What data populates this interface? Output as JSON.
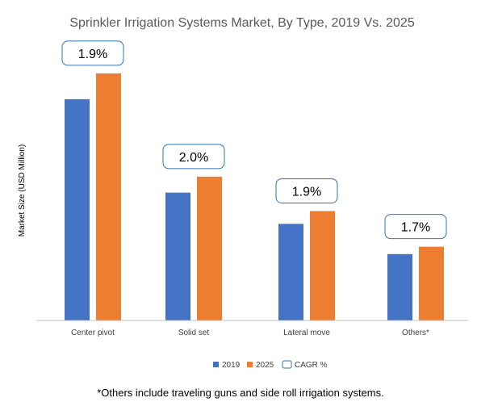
{
  "chart_data": {
    "type": "bar",
    "title": "Sprinkler Irrigation Systems Market, By Type, 2019 Vs. 2025",
    "ylabel": "Market Size (USD Million)",
    "xlabel": "",
    "categories": [
      "Center pivot",
      "Solid set",
      "Lateral move",
      "Others*"
    ],
    "series": [
      {
        "name": "2019",
        "color": "#4472C4",
        "values": [
          900,
          520,
          393,
          270
        ]
      },
      {
        "name": "2025",
        "color": "#ED7D31",
        "values": [
          1005,
          585,
          445,
          300
        ]
      }
    ],
    "ylim": [
      0,
      1100
    ],
    "grid": false,
    "cagr": [
      "1.9%",
      "2.0%",
      "1.9%",
      "1.7%"
    ],
    "cagr_legend_label": "CAGR %",
    "legend_position": "bottom",
    "footnote": "*Others include traveling guns and side roll irrigation systems."
  }
}
